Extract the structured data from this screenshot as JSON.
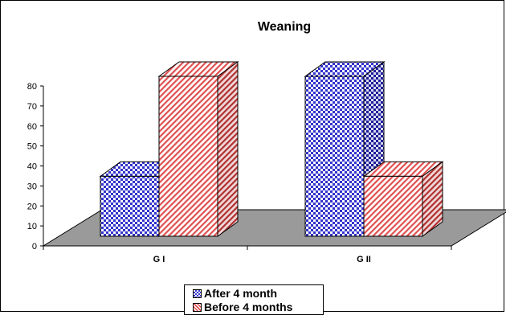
{
  "chart_data": {
    "type": "bar",
    "title": "Weaning",
    "categories": [
      "G I",
      "G II"
    ],
    "series": [
      {
        "name": "After 4 month",
        "values": [
          30,
          80
        ],
        "color": "#3333cc",
        "pattern": "checker"
      },
      {
        "name": "Before 4 months",
        "values": [
          80,
          30
        ],
        "color": "#e05050",
        "pattern": "diagonal"
      }
    ],
    "y_ticks": [
      "0",
      "10",
      "20",
      "30",
      "40",
      "50",
      "60",
      "70",
      "80"
    ],
    "ylim": [
      0,
      80
    ],
    "xlabel": "",
    "ylabel": "",
    "three_d": true,
    "floor_color": "#9a9a9a",
    "legend_position": "bottom"
  }
}
